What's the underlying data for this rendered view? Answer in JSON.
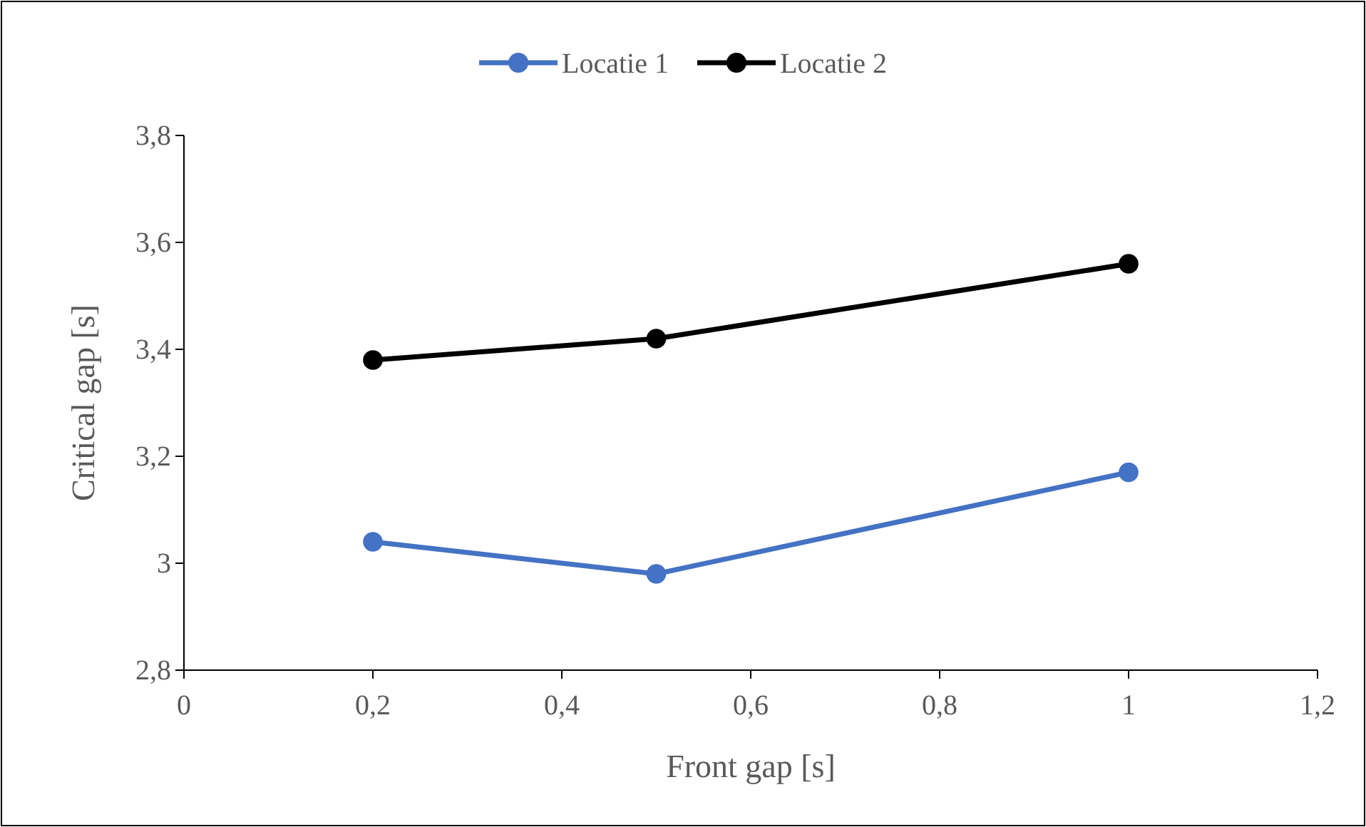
{
  "chart_data": {
    "type": "line",
    "xlabel": "Front gap [s]",
    "ylabel": "Critical gap [s]",
    "x": [
      0.2,
      0.5,
      1
    ],
    "series": [
      {
        "name": "Locatie 1",
        "color": "#4472c4",
        "values": [
          3.04,
          2.98,
          3.17
        ]
      },
      {
        "name": "Locatie 2",
        "color": "#000000",
        "values": [
          3.38,
          3.42,
          3.56
        ]
      }
    ],
    "xlim": [
      0,
      1.2
    ],
    "xticks": [
      0,
      {
        "value": 0.2,
        "label": "0,2"
      },
      {
        "value": 0.4,
        "label": "0,4"
      },
      {
        "value": 0.6,
        "label": "0,6"
      },
      {
        "value": 0.8,
        "label": "0,8"
      },
      1,
      {
        "value": 1.2,
        "label": "1,2"
      }
    ],
    "ylim": [
      2.8,
      3.8
    ],
    "yticks": [
      {
        "value": 2.8,
        "label": "2,8"
      },
      3,
      {
        "value": 3.2,
        "label": "3,2"
      },
      {
        "value": 3.4,
        "label": "3,4"
      },
      {
        "value": 3.6,
        "label": "3,6"
      },
      {
        "value": 3.8,
        "label": "3,8"
      }
    ],
    "grid": false,
    "legend": "top",
    "marker": "circle",
    "line_style": "solid"
  }
}
